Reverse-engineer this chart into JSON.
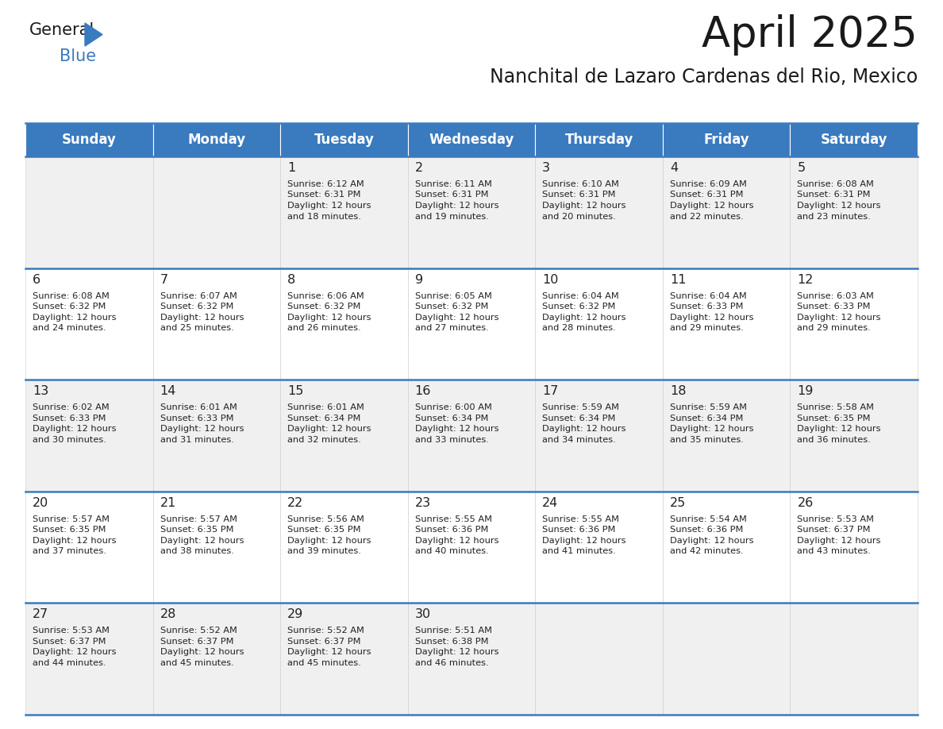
{
  "title": "April 2025",
  "subtitle": "Nanchital de Lazaro Cardenas del Rio, Mexico",
  "header_color": "#3a7abf",
  "header_text_color": "#ffffff",
  "cell_bg_row0": "#f0f0f0",
  "cell_bg_row1": "#ffffff",
  "border_color": "#3a7abf",
  "grid_color": "#cccccc",
  "day_names": [
    "Sunday",
    "Monday",
    "Tuesday",
    "Wednesday",
    "Thursday",
    "Friday",
    "Saturday"
  ],
  "title_fontsize": 38,
  "subtitle_fontsize": 17,
  "day_header_fontsize": 12,
  "cell_number_fontsize": 11.5,
  "cell_text_fontsize": 8.2,
  "days": [
    {
      "day": 1,
      "col": 2,
      "row": 0,
      "sunrise": "6:12 AM",
      "sunset": "6:31 PM",
      "daylight_hours": 12,
      "daylight_minutes": 18
    },
    {
      "day": 2,
      "col": 3,
      "row": 0,
      "sunrise": "6:11 AM",
      "sunset": "6:31 PM",
      "daylight_hours": 12,
      "daylight_minutes": 19
    },
    {
      "day": 3,
      "col": 4,
      "row": 0,
      "sunrise": "6:10 AM",
      "sunset": "6:31 PM",
      "daylight_hours": 12,
      "daylight_minutes": 20
    },
    {
      "day": 4,
      "col": 5,
      "row": 0,
      "sunrise": "6:09 AM",
      "sunset": "6:31 PM",
      "daylight_hours": 12,
      "daylight_minutes": 22
    },
    {
      "day": 5,
      "col": 6,
      "row": 0,
      "sunrise": "6:08 AM",
      "sunset": "6:31 PM",
      "daylight_hours": 12,
      "daylight_minutes": 23
    },
    {
      "day": 6,
      "col": 0,
      "row": 1,
      "sunrise": "6:08 AM",
      "sunset": "6:32 PM",
      "daylight_hours": 12,
      "daylight_minutes": 24
    },
    {
      "day": 7,
      "col": 1,
      "row": 1,
      "sunrise": "6:07 AM",
      "sunset": "6:32 PM",
      "daylight_hours": 12,
      "daylight_minutes": 25
    },
    {
      "day": 8,
      "col": 2,
      "row": 1,
      "sunrise": "6:06 AM",
      "sunset": "6:32 PM",
      "daylight_hours": 12,
      "daylight_minutes": 26
    },
    {
      "day": 9,
      "col": 3,
      "row": 1,
      "sunrise": "6:05 AM",
      "sunset": "6:32 PM",
      "daylight_hours": 12,
      "daylight_minutes": 27
    },
    {
      "day": 10,
      "col": 4,
      "row": 1,
      "sunrise": "6:04 AM",
      "sunset": "6:32 PM",
      "daylight_hours": 12,
      "daylight_minutes": 28
    },
    {
      "day": 11,
      "col": 5,
      "row": 1,
      "sunrise": "6:04 AM",
      "sunset": "6:33 PM",
      "daylight_hours": 12,
      "daylight_minutes": 29
    },
    {
      "day": 12,
      "col": 6,
      "row": 1,
      "sunrise": "6:03 AM",
      "sunset": "6:33 PM",
      "daylight_hours": 12,
      "daylight_minutes": 29
    },
    {
      "day": 13,
      "col": 0,
      "row": 2,
      "sunrise": "6:02 AM",
      "sunset": "6:33 PM",
      "daylight_hours": 12,
      "daylight_minutes": 30
    },
    {
      "day": 14,
      "col": 1,
      "row": 2,
      "sunrise": "6:01 AM",
      "sunset": "6:33 PM",
      "daylight_hours": 12,
      "daylight_minutes": 31
    },
    {
      "day": 15,
      "col": 2,
      "row": 2,
      "sunrise": "6:01 AM",
      "sunset": "6:34 PM",
      "daylight_hours": 12,
      "daylight_minutes": 32
    },
    {
      "day": 16,
      "col": 3,
      "row": 2,
      "sunrise": "6:00 AM",
      "sunset": "6:34 PM",
      "daylight_hours": 12,
      "daylight_minutes": 33
    },
    {
      "day": 17,
      "col": 4,
      "row": 2,
      "sunrise": "5:59 AM",
      "sunset": "6:34 PM",
      "daylight_hours": 12,
      "daylight_minutes": 34
    },
    {
      "day": 18,
      "col": 5,
      "row": 2,
      "sunrise": "5:59 AM",
      "sunset": "6:34 PM",
      "daylight_hours": 12,
      "daylight_minutes": 35
    },
    {
      "day": 19,
      "col": 6,
      "row": 2,
      "sunrise": "5:58 AM",
      "sunset": "6:35 PM",
      "daylight_hours": 12,
      "daylight_minutes": 36
    },
    {
      "day": 20,
      "col": 0,
      "row": 3,
      "sunrise": "5:57 AM",
      "sunset": "6:35 PM",
      "daylight_hours": 12,
      "daylight_minutes": 37
    },
    {
      "day": 21,
      "col": 1,
      "row": 3,
      "sunrise": "5:57 AM",
      "sunset": "6:35 PM",
      "daylight_hours": 12,
      "daylight_minutes": 38
    },
    {
      "day": 22,
      "col": 2,
      "row": 3,
      "sunrise": "5:56 AM",
      "sunset": "6:35 PM",
      "daylight_hours": 12,
      "daylight_minutes": 39
    },
    {
      "day": 23,
      "col": 3,
      "row": 3,
      "sunrise": "5:55 AM",
      "sunset": "6:36 PM",
      "daylight_hours": 12,
      "daylight_minutes": 40
    },
    {
      "day": 24,
      "col": 4,
      "row": 3,
      "sunrise": "5:55 AM",
      "sunset": "6:36 PM",
      "daylight_hours": 12,
      "daylight_minutes": 41
    },
    {
      "day": 25,
      "col": 5,
      "row": 3,
      "sunrise": "5:54 AM",
      "sunset": "6:36 PM",
      "daylight_hours": 12,
      "daylight_minutes": 42
    },
    {
      "day": 26,
      "col": 6,
      "row": 3,
      "sunrise": "5:53 AM",
      "sunset": "6:37 PM",
      "daylight_hours": 12,
      "daylight_minutes": 43
    },
    {
      "day": 27,
      "col": 0,
      "row": 4,
      "sunrise": "5:53 AM",
      "sunset": "6:37 PM",
      "daylight_hours": 12,
      "daylight_minutes": 44
    },
    {
      "day": 28,
      "col": 1,
      "row": 4,
      "sunrise": "5:52 AM",
      "sunset": "6:37 PM",
      "daylight_hours": 12,
      "daylight_minutes": 45
    },
    {
      "day": 29,
      "col": 2,
      "row": 4,
      "sunrise": "5:52 AM",
      "sunset": "6:37 PM",
      "daylight_hours": 12,
      "daylight_minutes": 45
    },
    {
      "day": 30,
      "col": 3,
      "row": 4,
      "sunrise": "5:51 AM",
      "sunset": "6:38 PM",
      "daylight_hours": 12,
      "daylight_minutes": 46
    }
  ]
}
